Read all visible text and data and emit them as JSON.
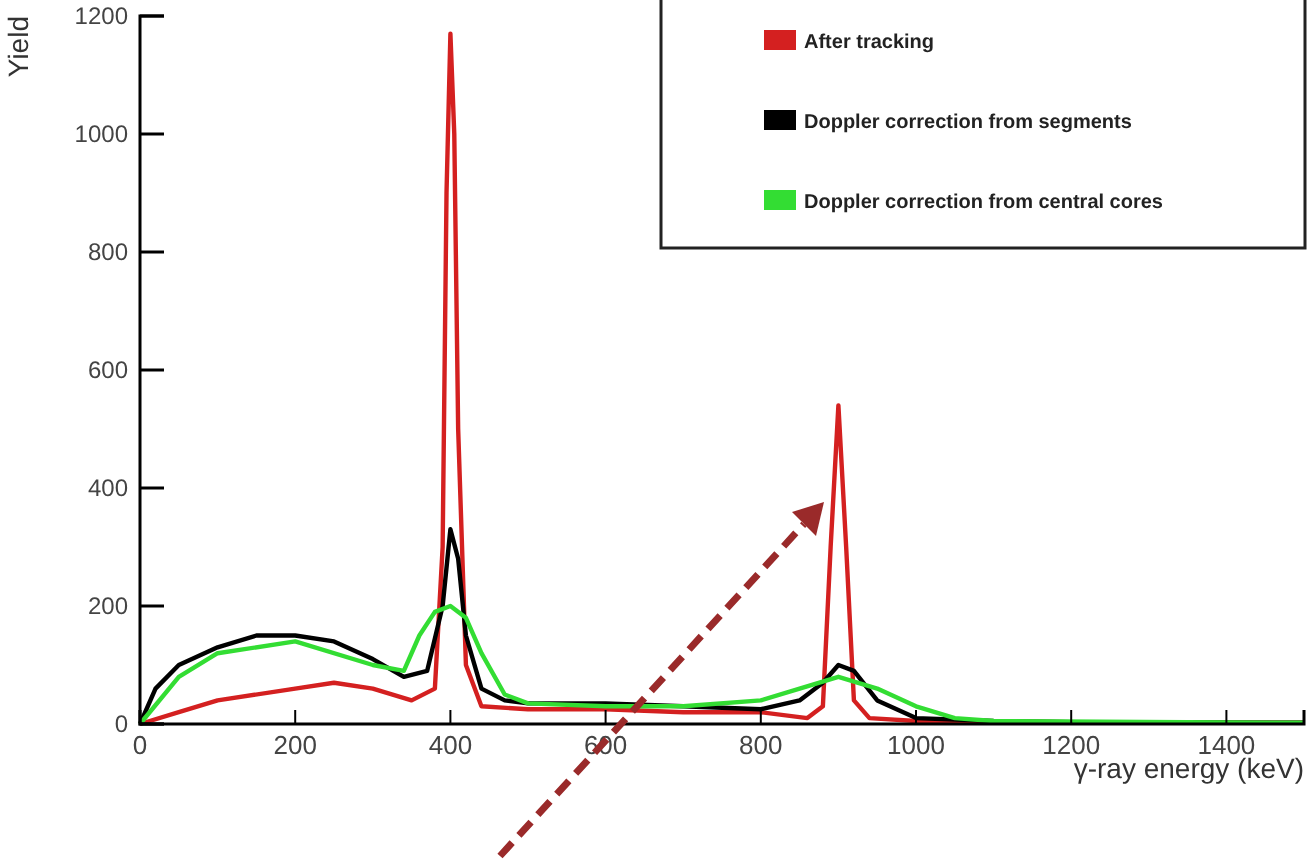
{
  "chart_data": {
    "type": "line",
    "xlabel": "γ-ray energy (keV)",
    "ylabel": "Yield",
    "xlim": [
      0,
      1500
    ],
    "ylim": [
      0,
      1200
    ],
    "xticks": [
      0,
      200,
      400,
      600,
      800,
      1000,
      1200,
      1400
    ],
    "yticks": [
      0,
      200,
      400,
      600,
      800,
      1000,
      1200
    ],
    "grid": false,
    "legend": "top right",
    "marker": "none",
    "line_style": "solid",
    "series": [
      {
        "name": "After tracking",
        "color": "#d42020",
        "x": [
          0,
          50,
          100,
          200,
          250,
          300,
          350,
          380,
          390,
          395,
          400,
          405,
          410,
          420,
          440,
          500,
          600,
          700,
          800,
          860,
          880,
          890,
          900,
          910,
          920,
          940,
          1000,
          1200,
          1500
        ],
        "values": [
          0,
          20,
          40,
          60,
          70,
          60,
          40,
          60,
          300,
          900,
          1170,
          1000,
          500,
          100,
          30,
          25,
          25,
          20,
          20,
          10,
          30,
          300,
          540,
          300,
          40,
          10,
          5,
          3,
          2
        ]
      },
      {
        "name": "Doppler correction from segments",
        "color": "#000000",
        "x": [
          0,
          20,
          50,
          100,
          150,
          200,
          250,
          300,
          340,
          370,
          390,
          400,
          410,
          420,
          440,
          470,
          500,
          600,
          700,
          800,
          850,
          880,
          900,
          920,
          950,
          1000,
          1100,
          1200,
          1500
        ],
        "values": [
          0,
          60,
          100,
          130,
          150,
          150,
          140,
          110,
          80,
          90,
          200,
          330,
          280,
          150,
          60,
          40,
          35,
          35,
          30,
          25,
          40,
          70,
          100,
          90,
          40,
          10,
          5,
          3,
          2
        ]
      },
      {
        "name": "Doppler correction from central cores",
        "color": "#33dd33",
        "x": [
          0,
          50,
          100,
          200,
          300,
          340,
          360,
          380,
          400,
          420,
          440,
          470,
          500,
          600,
          700,
          800,
          850,
          900,
          950,
          1000,
          1050,
          1100,
          1500
        ],
        "values": [
          0,
          80,
          120,
          140,
          100,
          90,
          150,
          190,
          200,
          180,
          120,
          50,
          35,
          30,
          30,
          40,
          60,
          80,
          60,
          30,
          10,
          5,
          2
        ]
      }
    ]
  }
}
